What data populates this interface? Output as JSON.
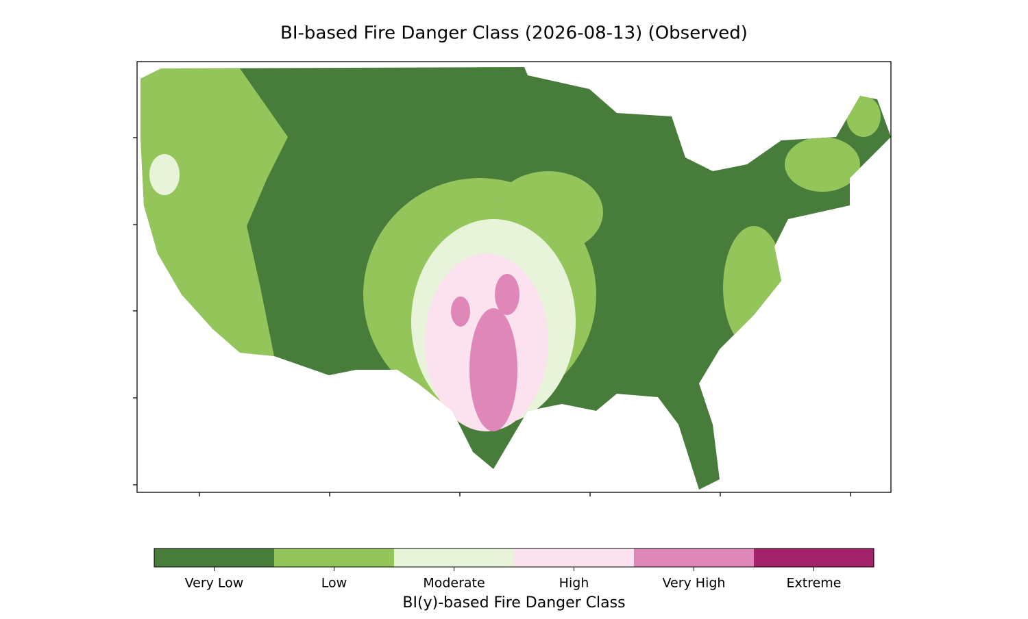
{
  "title": "BI-based Fire Danger Class (2026-08-13) (Observed)",
  "colorbar": {
    "label": "BI(y)-based Fire Danger Class",
    "classes": [
      {
        "name": "Very Low",
        "color": "#477c3b"
      },
      {
        "name": "Low",
        "color": "#93c55b"
      },
      {
        "name": "Moderate",
        "color": "#e8f4d9"
      },
      {
        "name": "High",
        "color": "#fbe2ee"
      },
      {
        "name": "Very High",
        "color": "#e087b9"
      },
      {
        "name": "Extreme",
        "color": "#a3236b"
      }
    ]
  }
}
